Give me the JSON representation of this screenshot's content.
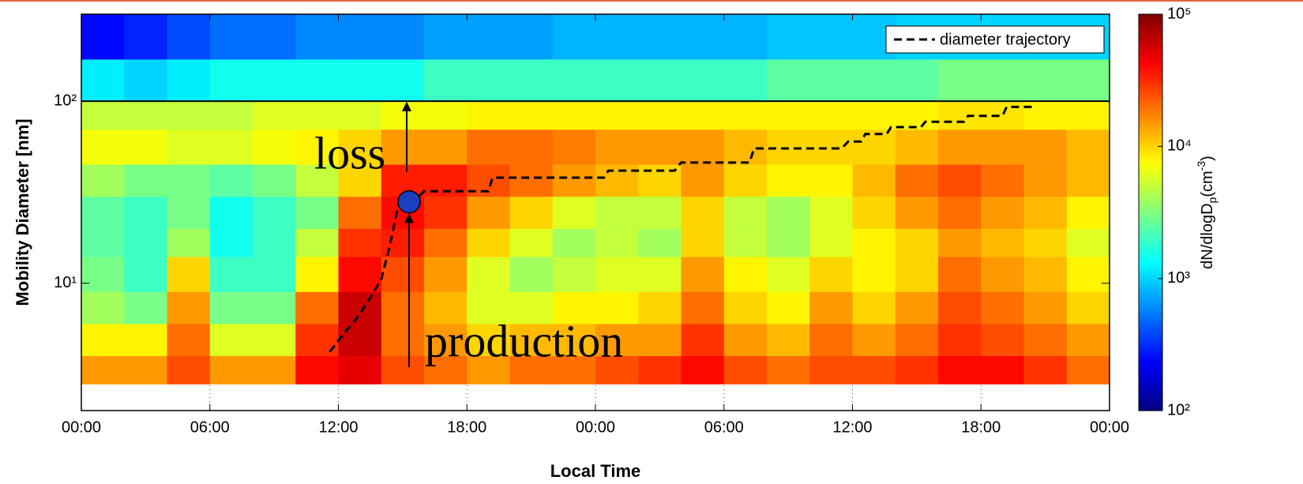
{
  "chart_data": {
    "type": "heatmap",
    "x_label": "Local Time",
    "y_label": "Mobility Diameter [nm]",
    "colorbar_label": [
      "dN/dlogD",
      "p",
      "(cm",
      "-3",
      ")"
    ],
    "log_y": true,
    "grid": true,
    "xlim": [
      0,
      48
    ],
    "xticks": [
      {
        "value": 0,
        "label": "00:00"
      },
      {
        "value": 6,
        "label": "06:00"
      },
      {
        "value": 12,
        "label": "12:00"
      },
      {
        "value": 18,
        "label": "18:00"
      },
      {
        "value": 24,
        "label": "00:00"
      },
      {
        "value": 30,
        "label": "06:00"
      },
      {
        "value": 36,
        "label": "12:00"
      },
      {
        "value": 42,
        "label": "18:00"
      },
      {
        "value": 48,
        "label": "00:00"
      }
    ],
    "ylim": [
      2,
      300
    ],
    "yticks": [
      {
        "value": 10,
        "label": "10¹"
      },
      {
        "value": 100,
        "label": "10²"
      }
    ],
    "clim": [
      100,
      100000
    ],
    "cticks": [
      {
        "value": 100,
        "label": "10²"
      },
      {
        "value": 1000,
        "label": "10³"
      },
      {
        "value": 10000,
        "label": "10⁴"
      },
      {
        "value": 100000,
        "label": "10⁵"
      }
    ],
    "colormap": "jet",
    "x_bins": [
      0,
      2,
      4,
      6,
      8,
      10,
      12,
      14,
      16,
      18,
      20,
      22,
      24,
      26,
      28,
      30,
      32,
      34,
      36,
      38,
      40,
      42,
      44,
      46,
      48
    ],
    "y_bins": [
      2.8,
      4,
      6,
      9,
      14,
      20,
      30,
      45,
      70,
      100,
      170,
      300
    ],
    "values": [
      [
        15000,
        15000,
        25000,
        15000,
        15000,
        40000,
        50000,
        25000,
        20000,
        15000,
        20000,
        20000,
        25000,
        30000,
        40000,
        25000,
        20000,
        25000,
        25000,
        30000,
        40000,
        40000,
        30000,
        20000
      ],
      [
        8000,
        8000,
        20000,
        6000,
        6000,
        30000,
        60000,
        20000,
        15000,
        10000,
        12000,
        12000,
        15000,
        15000,
        30000,
        15000,
        12000,
        20000,
        15000,
        20000,
        30000,
        25000,
        20000,
        15000
      ],
      [
        4000,
        3000,
        15000,
        3000,
        3000,
        20000,
        60000,
        20000,
        12000,
        6000,
        6000,
        8000,
        8000,
        10000,
        20000,
        10000,
        8000,
        15000,
        10000,
        15000,
        25000,
        20000,
        15000,
        10000
      ],
      [
        3000,
        2000,
        10000,
        2000,
        2000,
        8000,
        40000,
        25000,
        15000,
        6000,
        4000,
        5000,
        6000,
        6000,
        15000,
        8000,
        6000,
        10000,
        8000,
        10000,
        20000,
        15000,
        12000,
        8000
      ],
      [
        2500,
        2000,
        4000,
        1500,
        2000,
        5000,
        30000,
        35000,
        20000,
        10000,
        6000,
        4000,
        5000,
        4000,
        10000,
        5000,
        4000,
        6000,
        8000,
        10000,
        15000,
        12000,
        10000,
        6000
      ],
      [
        2500,
        2000,
        3000,
        1500,
        2000,
        3000,
        20000,
        40000,
        30000,
        15000,
        10000,
        6000,
        5000,
        5000,
        10000,
        5000,
        4000,
        6000,
        10000,
        15000,
        20000,
        15000,
        12000,
        8000
      ],
      [
        4000,
        3000,
        3000,
        2500,
        3000,
        5000,
        10000,
        35000,
        35000,
        25000,
        20000,
        15000,
        12000,
        10000,
        15000,
        10000,
        8000,
        8000,
        12000,
        20000,
        25000,
        20000,
        15000,
        12000
      ],
      [
        7000,
        7000,
        6000,
        6000,
        7000,
        8000,
        10000,
        15000,
        15000,
        20000,
        20000,
        18000,
        15000,
        15000,
        15000,
        12000,
        10000,
        10000,
        10000,
        12000,
        15000,
        15000,
        15000,
        12000
      ],
      [
        5000,
        5000,
        5000,
        5000,
        6000,
        6000,
        6000,
        7000,
        7000,
        8000,
        8000,
        8000,
        8000,
        8000,
        8000,
        8000,
        8000,
        8000,
        8000,
        8000,
        9000,
        9000,
        8000,
        8000
      ],
      [
        1200,
        1000,
        1200,
        1500,
        1500,
        1500,
        1500,
        1500,
        2000,
        2000,
        2000,
        2000,
        2000,
        2000,
        2000,
        2000,
        2500,
        2500,
        2500,
        2500,
        3000,
        3000,
        3000,
        3000
      ],
      [
        250,
        300,
        400,
        500,
        500,
        600,
        600,
        600,
        700,
        700,
        700,
        800,
        800,
        800,
        800,
        800,
        900,
        900,
        900,
        1000,
        1000,
        1000,
        1000,
        1000
      ]
    ],
    "series": [
      {
        "name": "diameter trajectory",
        "color": "#000000",
        "x": [
          11.6,
          12.2,
          12.8,
          13.4,
          14.0,
          14.4,
          14.8,
          15.5,
          16.0,
          19.0,
          19.2,
          24.4,
          24.6,
          27.7,
          28.0,
          31.2,
          31.4,
          35.5,
          35.8,
          36.4,
          36.6,
          37.6,
          37.8,
          39.2,
          39.4,
          41.2,
          41.4,
          43.0,
          43.2,
          44.5
        ],
        "values": [
          4.2,
          5.2,
          6.3,
          8,
          10.5,
          16,
          27,
          28,
          32,
          32,
          38,
          38,
          41.5,
          41.5,
          46,
          46,
          55,
          55,
          60,
          60,
          66,
          66,
          72,
          72,
          77,
          77,
          83,
          83,
          93,
          93
        ]
      }
    ],
    "reference_line": 100,
    "marker": {
      "x": 15.3,
      "y": 28,
      "color": "#1a3fbf"
    },
    "legend": "upper right",
    "annotations": [
      "loss",
      "production"
    ]
  }
}
